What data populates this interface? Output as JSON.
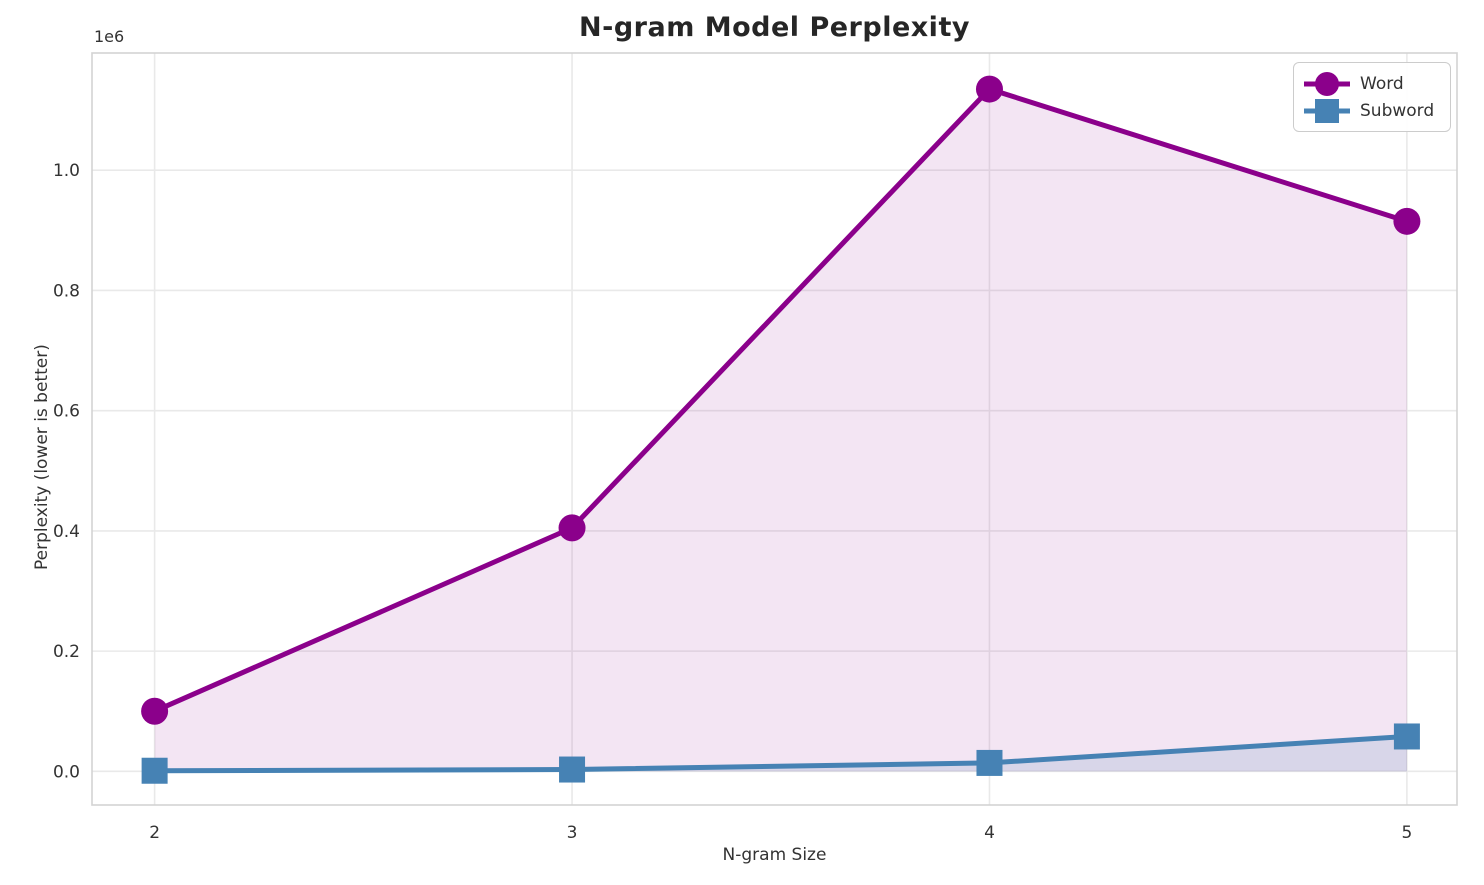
{
  "figure": {
    "background": "#ffffff"
  },
  "chart_data": {
    "type": "line",
    "title": "N-gram Model Perplexity",
    "xlabel": "N-gram Size",
    "ylabel": "Perplexity (lower is better)",
    "y_offset_label": "1e6",
    "x": [
      2,
      3,
      4,
      5
    ],
    "x_tick_labels": [
      "2",
      "3",
      "4",
      "5"
    ],
    "y_tick_values": [
      0,
      200000,
      400000,
      600000,
      800000,
      1000000
    ],
    "y_tick_labels": [
      "0.0",
      "0.2",
      "0.4",
      "0.6",
      "0.8",
      "1.0"
    ],
    "xlim": [
      1.85,
      5.12
    ],
    "ylim": [
      -56000,
      1195000
    ],
    "grid": true,
    "grid_color": "#e9e9e9",
    "spine_color": "#d3d3d3",
    "tick_label_color": "#333333",
    "legend_position": "upper right",
    "series": [
      {
        "name": "Word",
        "values": [
          100000,
          405000,
          1135000,
          915000
        ],
        "color": "#8B008B",
        "marker": "circle",
        "line_width": 5,
        "fill_to_zero": true,
        "fill_alpha": 0.1
      },
      {
        "name": "Subword",
        "values": [
          1000,
          3000,
          14000,
          58000
        ],
        "color": "#4682B4",
        "marker": "square",
        "line_width": 5,
        "fill_to_zero": true,
        "fill_alpha": 0.15
      }
    ]
  }
}
